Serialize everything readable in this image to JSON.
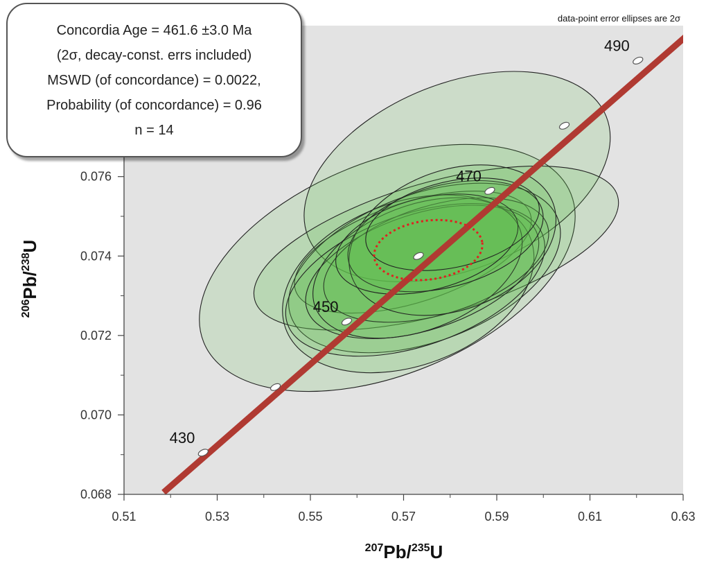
{
  "colors": {
    "plot_background": "#e3e3e3",
    "ellipse_fill": "#5fbf50",
    "ellipse_stroke": "#222222",
    "concordia_curve": "#b03a32",
    "mean_ellipse": "#e02020",
    "age_marker": "#ffffff"
  },
  "info_box": {
    "lines": [
      "Concordia Age = 461.6 ±3.0 Ma",
      "(2σ, decay-const. errs included)",
      "MSWD (of concordance) = 0.0022,",
      "Probability (of concordance) = 0.96",
      "n = 14"
    ]
  },
  "chart_data": {
    "type": "scatter",
    "subtype": "concordia-diagram",
    "note": "data-point error ellipses are 2σ",
    "xlabel": {
      "mass": "207",
      "element": "Pb",
      "sep": "/",
      "mass2": "235",
      "element2": "U"
    },
    "ylabel": {
      "mass": "206",
      "element": "Pb",
      "sep": "/",
      "mass2": "238",
      "element2": "U"
    },
    "xlim": [
      0.51,
      0.63
    ],
    "ylim": [
      0.068,
      0.0798
    ],
    "x_ticks": [
      "0.51",
      "0.53",
      "0.55",
      "0.57",
      "0.59",
      "0.61",
      "0.63"
    ],
    "y_ticks": [
      "0.068",
      "0.070",
      "0.072",
      "0.074",
      "0.076"
    ],
    "grid": false,
    "concordia": {
      "line": {
        "x": [
          0.5185,
          0.6305
        ],
        "y": [
          0.06805,
          0.07952
        ]
      },
      "age_markers": [
        {
          "age": "430",
          "x": 0.527,
          "y": 0.06905,
          "label_shown": true
        },
        {
          "age": "440",
          "x": 0.5425,
          "y": 0.0707,
          "label_shown": false
        },
        {
          "age": "450",
          "x": 0.5578,
          "y": 0.07235,
          "label_shown": true
        },
        {
          "age": "460",
          "x": 0.5732,
          "y": 0.074,
          "label_shown": false
        },
        {
          "age": "470",
          "x": 0.5885,
          "y": 0.07564,
          "label_shown": true
        },
        {
          "age": "480",
          "x": 0.6045,
          "y": 0.07728,
          "label_shown": false
        },
        {
          "age": "490",
          "x": 0.6203,
          "y": 0.07892,
          "label_shown": true
        }
      ]
    },
    "concordia_age": {
      "x": 0.5753,
      "y": 0.07415,
      "x_half_width": 0.0117,
      "y_half_height": 0.00074,
      "tilt_deg": 8
    },
    "ellipses": [
      {
        "x": 0.5665,
        "y": 0.0737,
        "x_half_width": 0.0425,
        "y_half_height": 0.00268,
        "tilt_deg": 22
      },
      {
        "x": 0.5815,
        "y": 0.076,
        "x_half_width": 0.0345,
        "y_half_height": 0.00234,
        "tilt_deg": 22
      },
      {
        "x": 0.577,
        "y": 0.0742,
        "x_half_width": 0.0405,
        "y_half_height": 0.00166,
        "tilt_deg": 16
      },
      {
        "x": 0.572,
        "y": 0.0741,
        "x_half_width": 0.0265,
        "y_half_height": 0.00126,
        "tilt_deg": 18
      },
      {
        "x": 0.5745,
        "y": 0.0737,
        "x_half_width": 0.0305,
        "y_half_height": 0.00186,
        "tilt_deg": 20
      },
      {
        "x": 0.571,
        "y": 0.0733,
        "x_half_width": 0.028,
        "y_half_height": 0.00206,
        "tilt_deg": 20
      },
      {
        "x": 0.5725,
        "y": 0.0734,
        "x_half_width": 0.029,
        "y_half_height": 0.00166,
        "tilt_deg": 19
      },
      {
        "x": 0.574,
        "y": 0.0736,
        "x_half_width": 0.026,
        "y_half_height": 0.00146,
        "tilt_deg": 18
      },
      {
        "x": 0.577,
        "y": 0.0739,
        "x_half_width": 0.025,
        "y_half_height": 0.00137,
        "tilt_deg": 17
      },
      {
        "x": 0.573,
        "y": 0.0737,
        "x_half_width": 0.0235,
        "y_half_height": 0.00157,
        "tilt_deg": 21
      },
      {
        "x": 0.5805,
        "y": 0.0744,
        "x_half_width": 0.023,
        "y_half_height": 0.00176,
        "tilt_deg": 20
      },
      {
        "x": 0.579,
        "y": 0.0745,
        "x_half_width": 0.0215,
        "y_half_height": 0.00128,
        "tilt_deg": 15
      },
      {
        "x": 0.575,
        "y": 0.0743,
        "x_half_width": 0.02,
        "y_half_height": 0.00116,
        "tilt_deg": 14
      },
      {
        "x": 0.5805,
        "y": 0.0748,
        "x_half_width": 0.019,
        "y_half_height": 0.00108,
        "tilt_deg": 13
      }
    ]
  }
}
